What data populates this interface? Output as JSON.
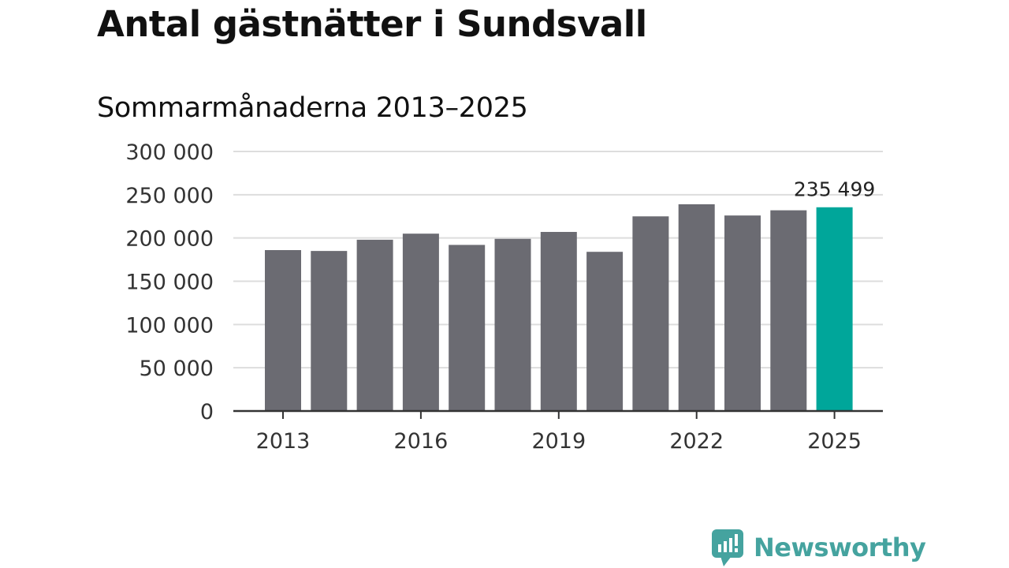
{
  "title": "Antal gästnätter i Sundsvall",
  "subtitle": "Sommarmånaderna 2013–2025",
  "brand": {
    "name": "Newsworthy",
    "logo_icon": "newsworthy-logo-icon",
    "color": "#45a39f"
  },
  "colors": {
    "bar": "#6b6b72",
    "highlight": "#00a69a",
    "grid": "#dddddd",
    "axis": "#333333"
  },
  "chart_data": {
    "type": "bar",
    "categories": [
      "2013",
      "2014",
      "2015",
      "2016",
      "2017",
      "2018",
      "2019",
      "2020",
      "2021",
      "2022",
      "2023",
      "2024",
      "2025"
    ],
    "x_tick_labels": [
      "2013",
      "2016",
      "2019",
      "2022",
      "2025"
    ],
    "values": [
      186000,
      185000,
      198000,
      205000,
      192000,
      199000,
      207000,
      184000,
      225000,
      239000,
      226000,
      232000,
      235499
    ],
    "highlight_index": 12,
    "data_labels": [
      {
        "index": 12,
        "text": "235 499"
      }
    ],
    "y_ticks": [
      0,
      50000,
      100000,
      150000,
      200000,
      250000,
      300000
    ],
    "y_tick_labels": [
      "0",
      "50 000",
      "100 000",
      "150 000",
      "200 000",
      "250 000",
      "300 000"
    ],
    "ylim": [
      0,
      300000
    ],
    "grid": true,
    "legend": false
  }
}
